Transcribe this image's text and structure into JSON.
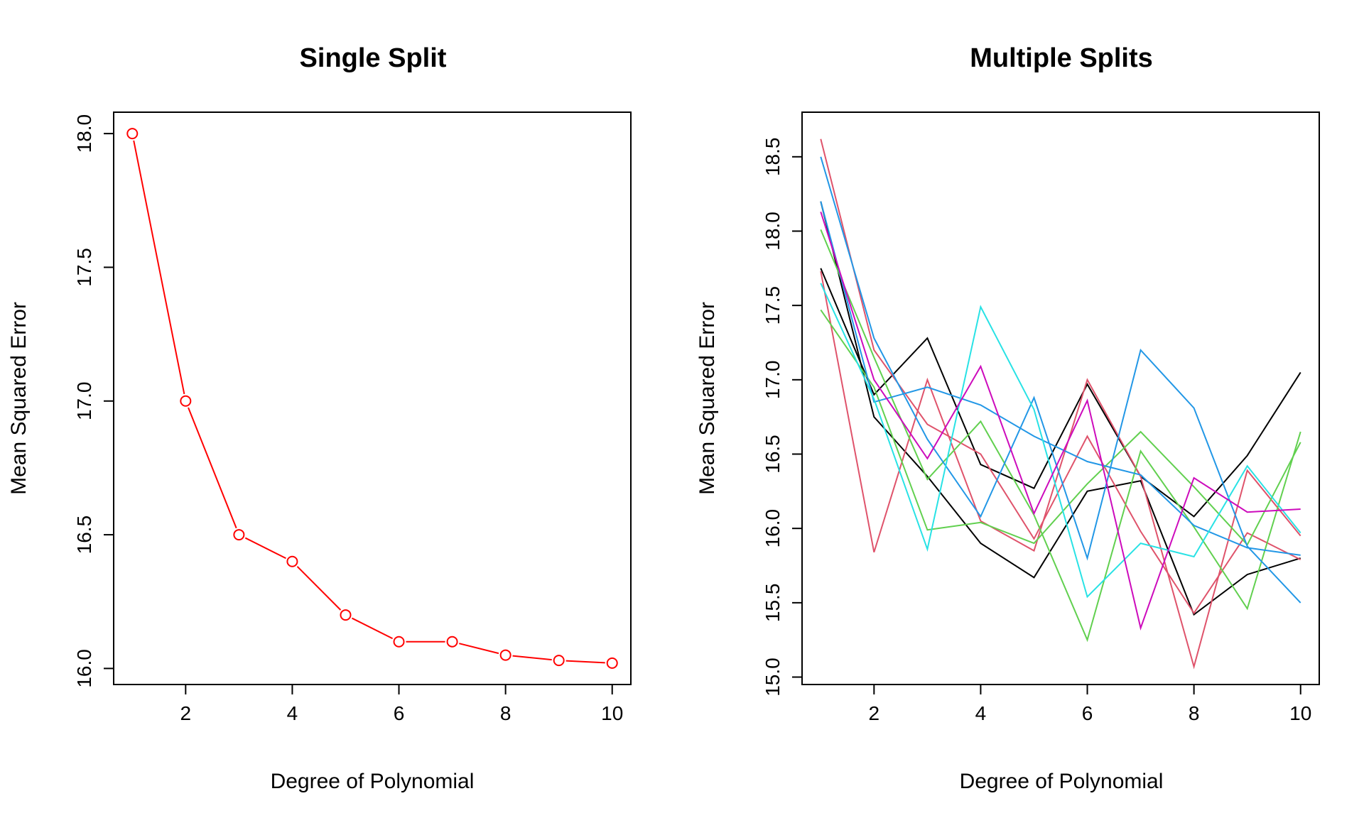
{
  "chart_data": [
    {
      "type": "line",
      "title": "Single Split",
      "xlabel": "Degree of Polynomial",
      "ylabel": "Mean Squared Error",
      "xlim": [
        0.65,
        10.35
      ],
      "ylim": [
        15.94,
        18.08
      ],
      "xticks": [
        "2",
        "4",
        "6",
        "8",
        "10"
      ],
      "yticks": [
        "16.0",
        "16.5",
        "17.0",
        "17.5",
        "18.0"
      ],
      "grid": false,
      "markers": "open-circle",
      "series": [
        {
          "color": "#ff0000",
          "x": [
            1,
            2,
            3,
            4,
            5,
            6,
            7,
            8,
            9,
            10
          ],
          "values": [
            18.0,
            17.0,
            16.5,
            16.4,
            16.2,
            16.1,
            16.1,
            16.05,
            16.03,
            16.02
          ]
        }
      ]
    },
    {
      "type": "line",
      "title": "Multiple Splits",
      "xlabel": "Degree of Polynomial",
      "ylabel": "Mean Squared Error",
      "xlim": [
        0.65,
        10.35
      ],
      "ylim": [
        14.95,
        18.8
      ],
      "xticks": [
        "2",
        "4",
        "6",
        "8",
        "10"
      ],
      "yticks": [
        "15.0",
        "15.5",
        "16.0",
        "16.5",
        "17.0",
        "17.5",
        "18.0",
        "18.5"
      ],
      "grid": false,
      "markers": "none",
      "series": [
        {
          "color": "#000000",
          "x": [
            1,
            2,
            3,
            4,
            5,
            6,
            7,
            8,
            9,
            10
          ],
          "values": [
            18.2,
            16.75,
            16.35,
            15.9,
            15.67,
            16.25,
            16.32,
            15.42,
            15.69,
            15.8
          ]
        },
        {
          "color": "#000000",
          "x": [
            1,
            2,
            3,
            4,
            5,
            6,
            7,
            8,
            9,
            10
          ],
          "values": [
            17.75,
            16.9,
            17.28,
            16.43,
            16.27,
            16.97,
            16.35,
            16.08,
            16.49,
            17.05
          ]
        },
        {
          "color": "#df536b",
          "x": [
            1,
            2,
            3,
            4,
            5,
            6,
            7,
            8,
            9,
            10
          ],
          "values": [
            18.62,
            17.2,
            16.7,
            16.5,
            15.93,
            16.62,
            15.98,
            15.43,
            15.97,
            15.79
          ]
        },
        {
          "color": "#df536b",
          "x": [
            1,
            2,
            3,
            4,
            5,
            6,
            7,
            8,
            9,
            10
          ],
          "values": [
            17.73,
            15.84,
            17.0,
            16.05,
            15.85,
            17.0,
            16.35,
            15.07,
            16.39,
            15.95
          ]
        },
        {
          "color": "#61d04f",
          "x": [
            1,
            2,
            3,
            4,
            5,
            6,
            7,
            8,
            9,
            10
          ],
          "values": [
            18.01,
            17.15,
            16.33,
            16.72,
            16.09,
            15.25,
            16.52,
            16.01,
            15.46,
            16.65
          ]
        },
        {
          "color": "#61d04f",
          "x": [
            1,
            2,
            3,
            4,
            5,
            6,
            7,
            8,
            9,
            10
          ],
          "values": [
            17.47,
            16.95,
            15.99,
            16.04,
            15.9,
            16.3,
            16.65,
            16.28,
            15.89,
            16.58
          ]
        },
        {
          "color": "#2297e6",
          "x": [
            1,
            2,
            3,
            4,
            5,
            6,
            7,
            8,
            9,
            10
          ],
          "values": [
            18.5,
            17.28,
            16.6,
            16.08,
            16.88,
            15.8,
            17.2,
            16.81,
            15.88,
            15.5
          ]
        },
        {
          "color": "#2297e6",
          "x": [
            1,
            2,
            3,
            4,
            5,
            6,
            7,
            8,
            9,
            10
          ],
          "values": [
            18.2,
            16.85,
            16.95,
            16.83,
            16.62,
            16.45,
            16.36,
            16.02,
            15.87,
            15.82
          ]
        },
        {
          "color": "#28e2e5",
          "x": [
            1,
            2,
            3,
            4,
            5,
            6,
            7,
            8,
            9,
            10
          ],
          "values": [
            17.65,
            16.87,
            15.86,
            17.49,
            16.8,
            15.54,
            15.9,
            15.81,
            16.42,
            15.97
          ]
        },
        {
          "color": "#cd0bbc",
          "x": [
            1,
            2,
            3,
            4,
            5,
            6,
            7,
            8,
            9,
            10
          ],
          "values": [
            18.13,
            17.0,
            16.47,
            17.09,
            16.1,
            16.86,
            15.33,
            16.34,
            16.11,
            16.13
          ]
        }
      ]
    }
  ]
}
